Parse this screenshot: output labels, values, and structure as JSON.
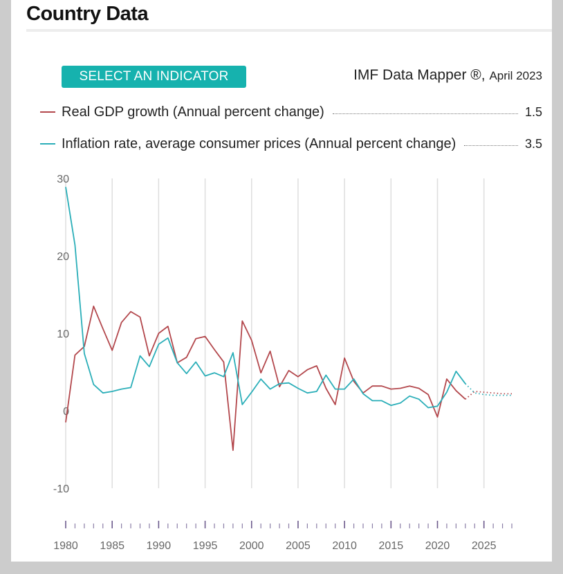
{
  "page": {
    "title": "Country Data"
  },
  "controls": {
    "select_indicator": "SELECT AN INDICATOR"
  },
  "source": {
    "name": "IMF Data Mapper ®,",
    "date": "April 2023"
  },
  "legend": [
    {
      "label": "Real GDP growth (Annual percent change)",
      "value": "1.5",
      "color": "#b3474c"
    },
    {
      "label": "Inflation rate, average consumer prices (Annual percent change)",
      "value": "3.5",
      "color": "#2aaeb8"
    }
  ],
  "chart_data": {
    "type": "line",
    "xlim": [
      1980,
      2028
    ],
    "ylim": [
      -10,
      30
    ],
    "y_ticks": [
      30,
      20,
      10,
      0,
      -10
    ],
    "x_tick_labels": [
      1980,
      1985,
      1990,
      1995,
      2000,
      2005,
      2010,
      2015,
      2020,
      2025
    ],
    "x_minor_ticks": [
      1980,
      1981,
      1982,
      1983,
      1984,
      1985,
      1986,
      1987,
      1988,
      1989,
      1990,
      1991,
      1992,
      1993,
      1994,
      1995,
      1996,
      1997,
      1998,
      1999,
      2000,
      2001,
      2002,
      2003,
      2004,
      2005,
      2006,
      2007,
      2008,
      2009,
      2010,
      2011,
      2012,
      2013,
      2014,
      2015,
      2016,
      2017,
      2018,
      2019,
      2020,
      2021,
      2022,
      2023,
      2024,
      2025,
      2026,
      2027,
      2028
    ],
    "gridlines": "vertical",
    "series": [
      {
        "name": "Real GDP growth (Annual percent change)",
        "color": "#b3474c",
        "actual": {
          "x": [
            1980,
            1981,
            1982,
            1983,
            1984,
            1985,
            1986,
            1987,
            1988,
            1989,
            1990,
            1991,
            1992,
            1993,
            1994,
            1995,
            1996,
            1997,
            1998,
            1999,
            2000,
            2001,
            2002,
            2003,
            2004,
            2005,
            2006,
            2007,
            2008,
            2009,
            2010,
            2011,
            2012,
            2013,
            2014,
            2015,
            2016,
            2017,
            2018,
            2019,
            2020,
            2021,
            2022,
            2023
          ],
          "y": [
            -1.5,
            7.2,
            8.3,
            13.5,
            10.6,
            7.8,
            11.4,
            12.8,
            12.1,
            7.1,
            10.0,
            10.9,
            6.2,
            6.9,
            9.3,
            9.6,
            7.9,
            6.3,
            -5.1,
            11.6,
            9.1,
            4.9,
            7.7,
            3.1,
            5.2,
            4.4,
            5.3,
            5.8,
            2.9,
            0.8,
            6.8,
            3.8,
            2.3,
            3.2,
            3.2,
            2.8,
            2.9,
            3.2,
            2.9,
            2.1,
            -0.8,
            4.1,
            2.6,
            1.5
          ]
        },
        "projection": {
          "x": [
            2023,
            2024,
            2025,
            2026,
            2027,
            2028
          ],
          "y": [
            1.5,
            2.5,
            2.4,
            2.3,
            2.2,
            2.2
          ]
        }
      },
      {
        "name": "Inflation rate, average consumer prices (Annual percent change)",
        "color": "#2aaeb8",
        "actual": {
          "x": [
            1980,
            1981,
            1982,
            1983,
            1984,
            1985,
            1986,
            1987,
            1988,
            1989,
            1990,
            1991,
            1992,
            1993,
            1994,
            1995,
            1996,
            1997,
            1998,
            1999,
            2000,
            2001,
            2002,
            2003,
            2004,
            2005,
            2006,
            2007,
            2008,
            2009,
            2010,
            2011,
            2012,
            2013,
            2014,
            2015,
            2016,
            2017,
            2018,
            2019,
            2020,
            2021,
            2022,
            2023
          ],
          "y": [
            28.9,
            21.4,
            7.4,
            3.4,
            2.3,
            2.5,
            2.8,
            3.0,
            7.1,
            5.7,
            8.6,
            9.4,
            6.2,
            4.8,
            6.3,
            4.5,
            4.9,
            4.4,
            7.5,
            0.8,
            2.4,
            4.1,
            2.8,
            3.5,
            3.6,
            2.9,
            2.3,
            2.5,
            4.6,
            2.8,
            2.8,
            4.1,
            2.2,
            1.3,
            1.3,
            0.7,
            1.0,
            1.9,
            1.5,
            0.4,
            0.6,
            2.4,
            5.1,
            3.5
          ]
        },
        "projection": {
          "x": [
            2023,
            2024,
            2025,
            2026,
            2027,
            2028
          ],
          "y": [
            3.5,
            2.3,
            2.1,
            2.0,
            2.0,
            2.0
          ]
        }
      }
    ]
  }
}
